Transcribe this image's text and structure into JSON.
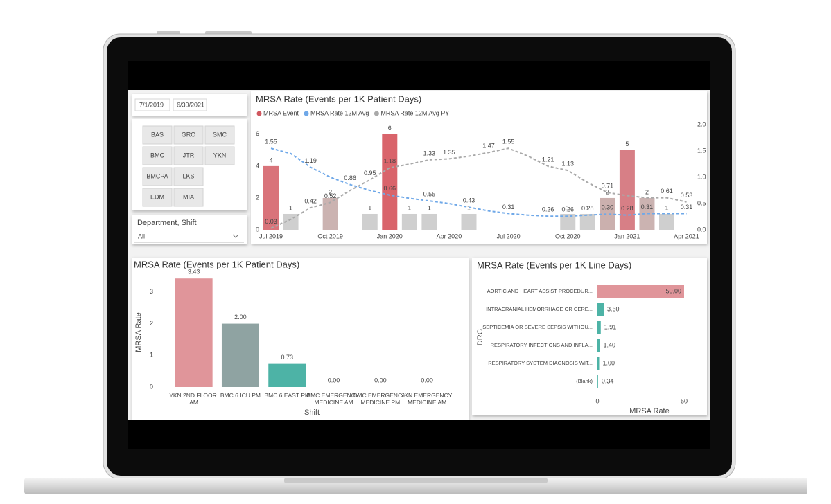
{
  "date_range": {
    "start": "7/1/2019",
    "end": "6/30/2021"
  },
  "facility_buttons": [
    "BAS",
    "GRO",
    "SMC",
    "BMC",
    "JTR",
    "YKN",
    "BMCPA",
    "LKS",
    "EDM",
    "MIA"
  ],
  "department_filter": {
    "label": "Department, Shift",
    "value": "All"
  },
  "chart_data": [
    {
      "type": "combo",
      "title": "MRSA Rate (Events per 1K Patient Days)",
      "categories": [
        "Jul 2019",
        null,
        null,
        "Oct 2019",
        null,
        null,
        "Jan 2020",
        null,
        null,
        "Apr 2020",
        null,
        null,
        "Jul 2020",
        null,
        null,
        "Oct 2020",
        null,
        null,
        "Jan 2021",
        null,
        null,
        "Apr 2021"
      ],
      "ylim": [
        0,
        6.6
      ],
      "yticks": [
        0,
        2,
        4,
        6
      ],
      "y2lim": [
        0,
        2
      ],
      "y2ticks": [
        {
          "value": 0,
          "label": "0.0"
        },
        {
          "value": 0.5,
          "label": "0.5"
        },
        {
          "value": 1,
          "label": "1.0"
        },
        {
          "value": 1.5,
          "label": "1.5"
        },
        {
          "value": 2,
          "label": "2.0"
        }
      ],
      "series": [
        {
          "name": "MRSA Event",
          "type": "bar",
          "color": "#d0575f",
          "colors": [
            "#d9737a",
            "#cfcfcf",
            null,
            "#cbb3b1",
            null,
            "#cfcfcf",
            "#d9646b",
            "#cfcfcf",
            "#cfcfcf",
            null,
            "#cfcfcf",
            null,
            null,
            null,
            null,
            "#cfcfcf",
            "#cfcfcf",
            "#cbb0ae",
            "#d77f86",
            "#cbb3b1",
            "#cfcfcf",
            null
          ],
          "values": [
            4,
            1,
            null,
            2,
            null,
            1,
            6,
            1,
            1,
            null,
            1,
            null,
            null,
            null,
            null,
            1,
            1,
            2,
            5,
            2,
            1,
            null
          ]
        },
        {
          "name": "MRSA Rate 12M Avg",
          "type": "line",
          "axis": "y2",
          "color": "#6fa8e8",
          "values": [
            1.55,
            1.45,
            1.19,
            1.0,
            0.86,
            0.75,
            0.66,
            0.6,
            0.55,
            0.5,
            0.43,
            0.36,
            0.31,
            0.28,
            0.26,
            0.26,
            0.28,
            0.3,
            0.28,
            0.31,
            0.31,
            0.31
          ],
          "value_labels": [
            "1.55",
            null,
            "1.19",
            null,
            "0.86",
            null,
            "0.66",
            null,
            "0.55",
            null,
            "0.43",
            null,
            "0.31",
            null,
            "0.26",
            "0.26",
            "0.28",
            "0.30",
            "0.28",
            "0.31",
            null,
            "0.31"
          ]
        },
        {
          "name": "MRSA Rate 12M Avg PY",
          "type": "line",
          "axis": "y2",
          "color": "#a9a9a9",
          "values": [
            0.03,
            0.2,
            0.42,
            0.52,
            0.75,
            0.95,
            1.18,
            1.25,
            1.33,
            1.35,
            1.4,
            1.47,
            1.55,
            1.4,
            1.21,
            1.13,
            0.9,
            0.71,
            0.65,
            0.61,
            0.61,
            0.53
          ],
          "value_labels": [
            "0.03",
            null,
            "0.42",
            "0.52",
            null,
            "0.95",
            "1.18",
            null,
            "1.33",
            "1.35",
            null,
            "1.47",
            "1.55",
            null,
            "1.21",
            "1.13",
            null,
            "0.71",
            null,
            null,
            "0.61",
            "0.53"
          ]
        }
      ]
    },
    {
      "type": "bar",
      "title": "MRSA Rate (Events per 1K Patient Days)",
      "categories": [
        "YKN 2ND FLOOR AM",
        "BMC 6 ICU PM",
        "BMC 6 EAST PM",
        "BMC EMERGENCY MEDICINE AM",
        "BMC EMERGENCY MEDICINE PM",
        "YKN EMERGENCY MEDICINE AM"
      ],
      "values": [
        3.43,
        2,
        0.73,
        0,
        0,
        0
      ],
      "value_labels": [
        "3.43",
        "2.00",
        "0.73",
        "0.00",
        "0.00",
        "0.00"
      ],
      "colors": [
        "#e0959a",
        "#8fa3a2",
        "#4db3a6",
        "#4db3a6",
        "#4db3a6",
        "#4db3a6"
      ],
      "ylim": [
        0,
        3.5
      ],
      "yticks": [
        0,
        1,
        2,
        3
      ],
      "ylabel": "MRSA Rate",
      "xlabel": "Shift"
    },
    {
      "type": "hbar",
      "title": "MRSA Rate (Events per 1K Line Days)",
      "categories": [
        "AORTIC AND HEART ASSIST PROCEDUR...",
        "INTRACRANIAL HEMORRHAGE OR CERE...",
        "SEPTICEMIA OR SEVERE SEPSIS WITHOU...",
        "RESPIRATORY INFECTIONS AND INFLA...",
        "RESPIRATORY SYSTEM DIAGNOSIS WIT...",
        "(Blank)"
      ],
      "values": [
        50,
        3.6,
        1.91,
        1.4,
        1,
        0.34
      ],
      "value_labels": [
        "50.00",
        "3.60",
        "1.91",
        "1.40",
        "1.00",
        "0.34"
      ],
      "colors": [
        "#e0959a",
        "#4db3a6",
        "#4db3a6",
        "#4db3a6",
        "#4db3a6",
        "#4db3a6"
      ],
      "xlim": [
        0,
        50
      ],
      "xticks": [
        0,
        50
      ],
      "xlabel": "MRSA Rate",
      "ylabel": "DRG"
    }
  ]
}
